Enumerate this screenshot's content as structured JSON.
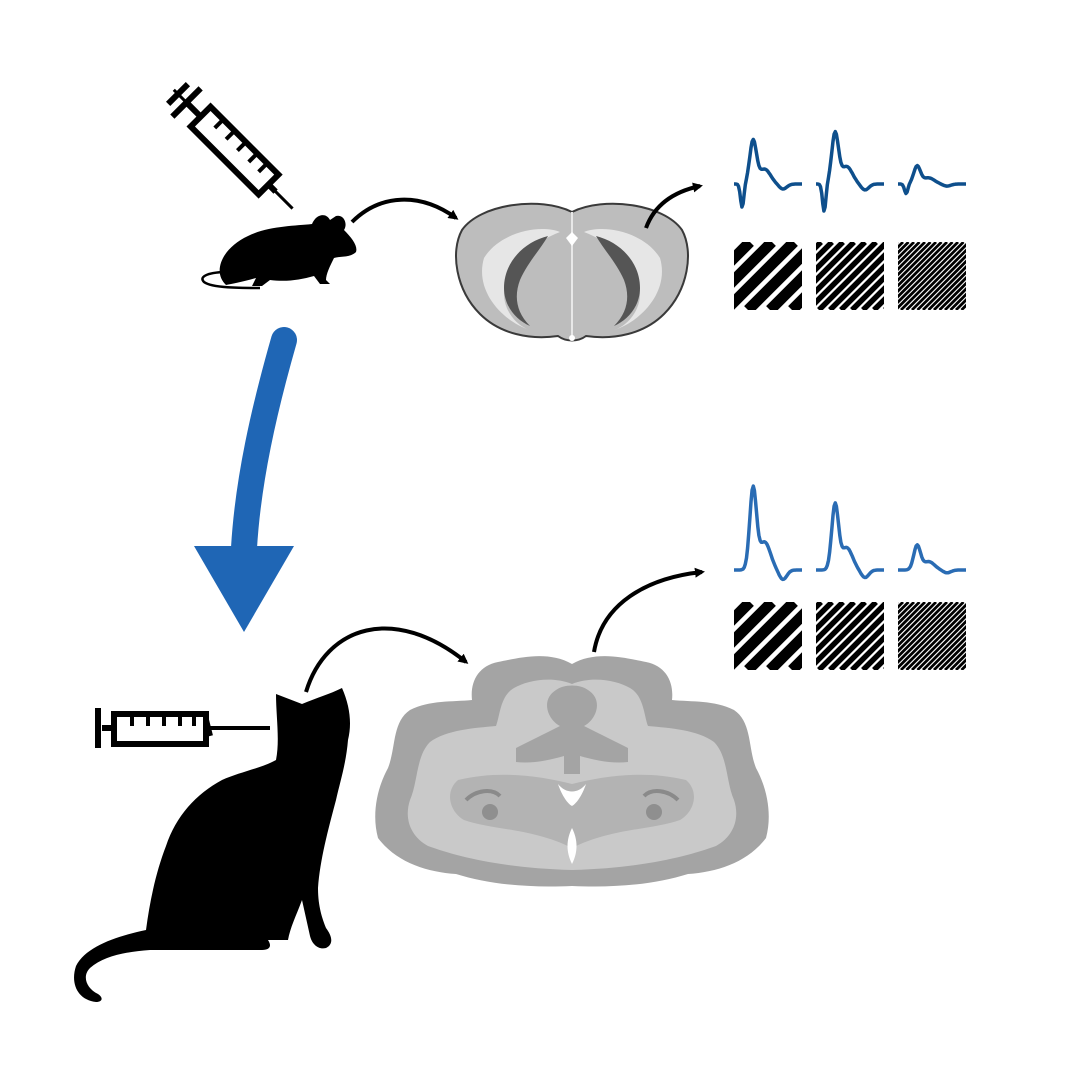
{
  "colors": {
    "background": "#ffffff",
    "silhouette": "#000000",
    "trace_mouse": "#0e4f8c",
    "trace_cat": "#2a6cb4",
    "translation_arrow": "#1f66b5",
    "brain_mouse_fill": "#bdbdbd",
    "brain_mouse_stroke": "#3a3a3a",
    "brain_cat_outer": "#a4a4a4",
    "brain_cat_inner": "#c9c9c9",
    "ventricle": "#555555"
  },
  "icons": {
    "mouse": "mouse-silhouette-icon",
    "cat": "cat-silhouette-icon",
    "syringe": "syringe-icon",
    "mouse_brain": "mouse-brain-section-icon",
    "cat_brain": "cat-brain-section-icon",
    "grating": "grating-stimulus-icon"
  },
  "stimuli": {
    "spatial_frequency_order": [
      "low",
      "medium",
      "high"
    ]
  },
  "responses": {
    "mouse_relative_peak": [
      0.85,
      1.0,
      0.35
    ],
    "cat_relative_peak": [
      1.0,
      0.8,
      0.3
    ]
  }
}
